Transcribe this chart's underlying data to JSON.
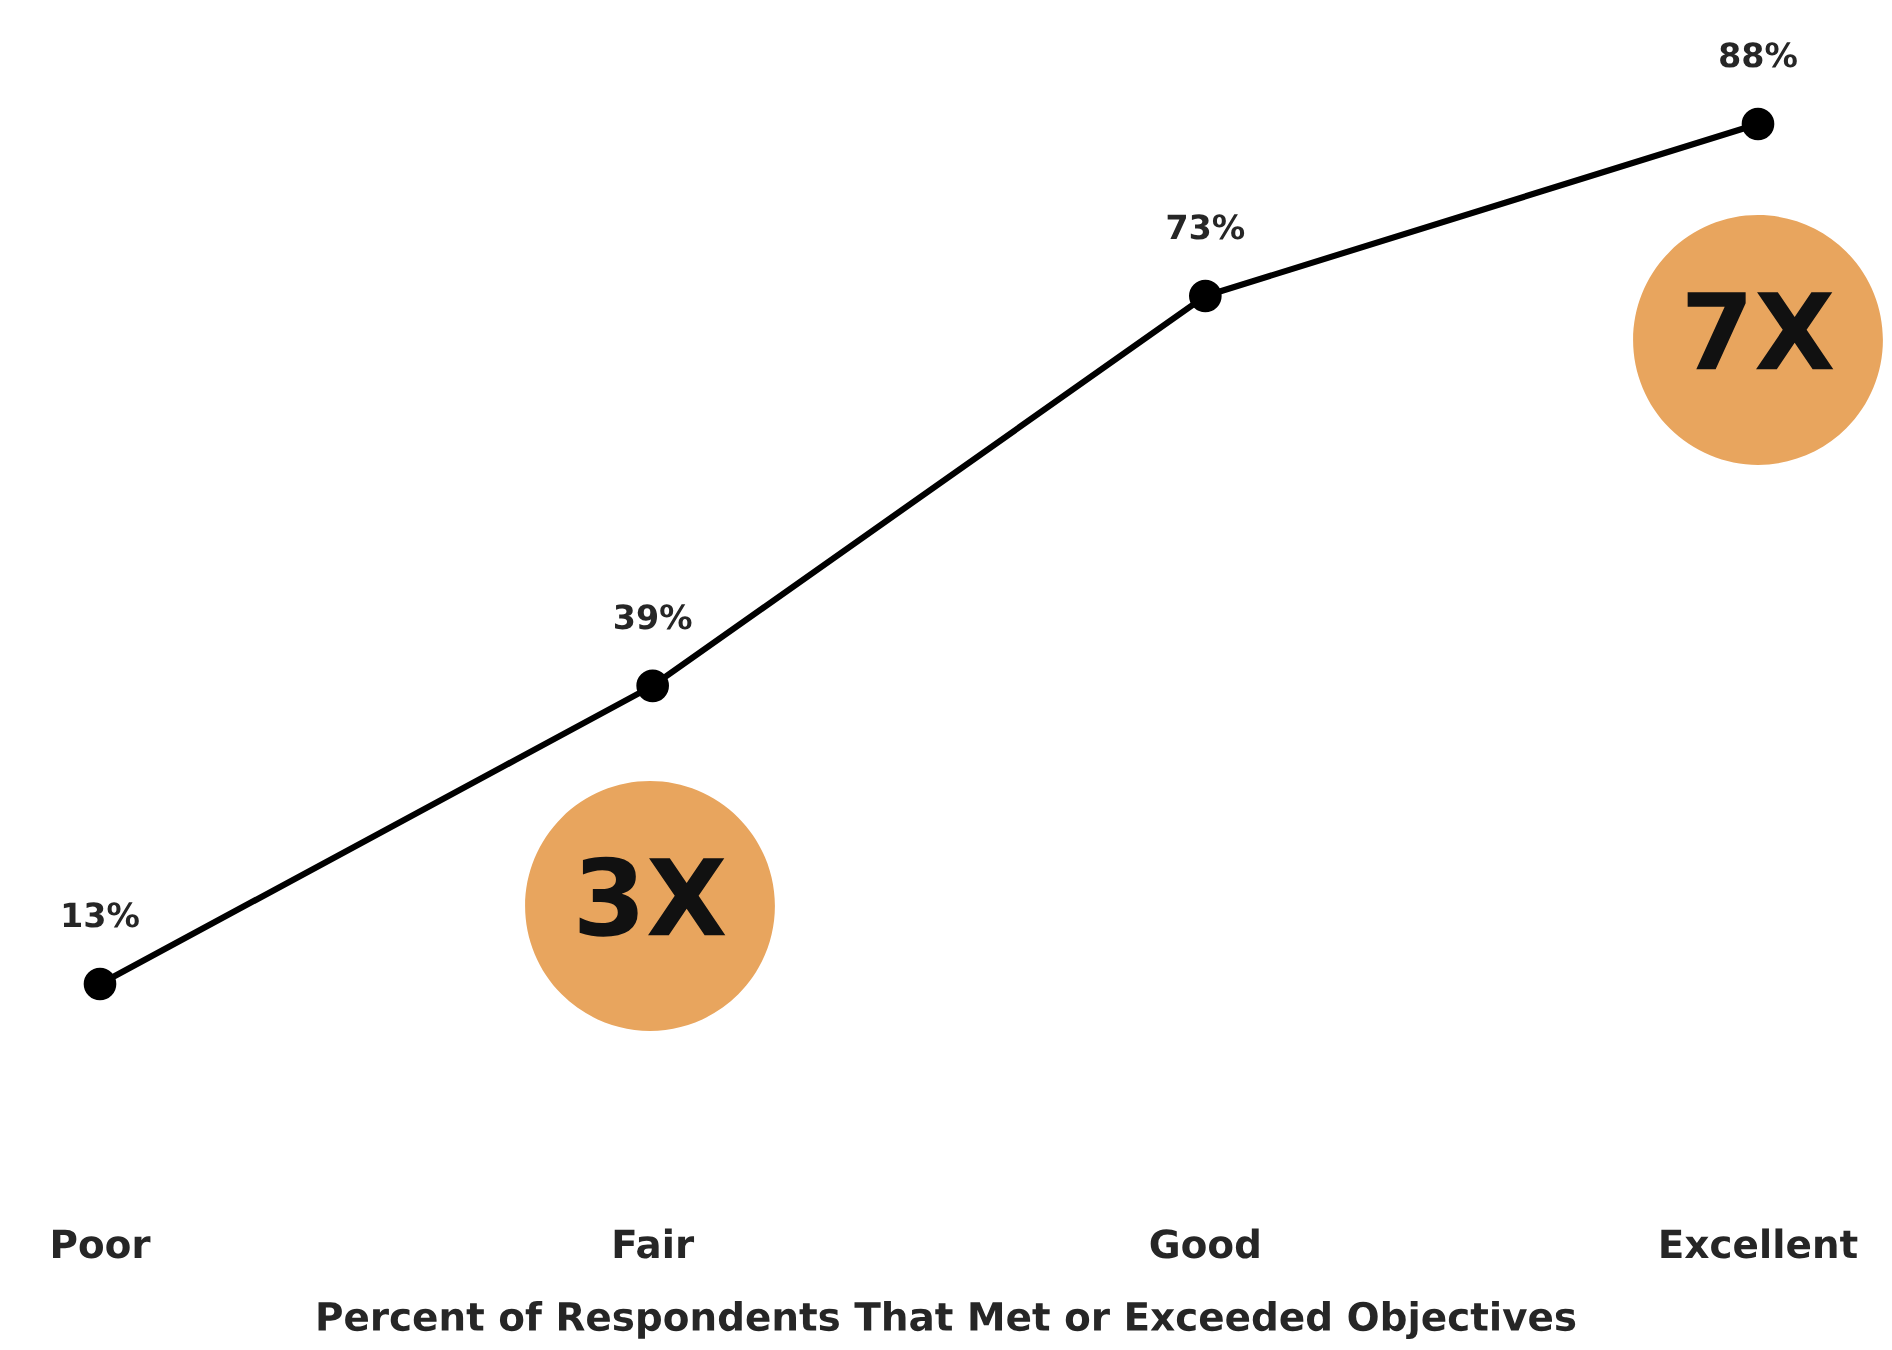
{
  "chart_data": {
    "type": "line",
    "categories": [
      "Poor",
      "Fair",
      "Good",
      "Excellent"
    ],
    "values": [
      13,
      39,
      73,
      88
    ],
    "color": "#000000",
    "marker": "circle",
    "line_style": "solid",
    "value_labels": [
      "13%",
      "39%",
      "73%",
      "88%"
    ],
    "xlabel": "Percent of Respondents That Met or Exceeded Objectives",
    "tick_labels": "x",
    "grid": false,
    "annotations": [
      "3X",
      "7X"
    ]
  }
}
